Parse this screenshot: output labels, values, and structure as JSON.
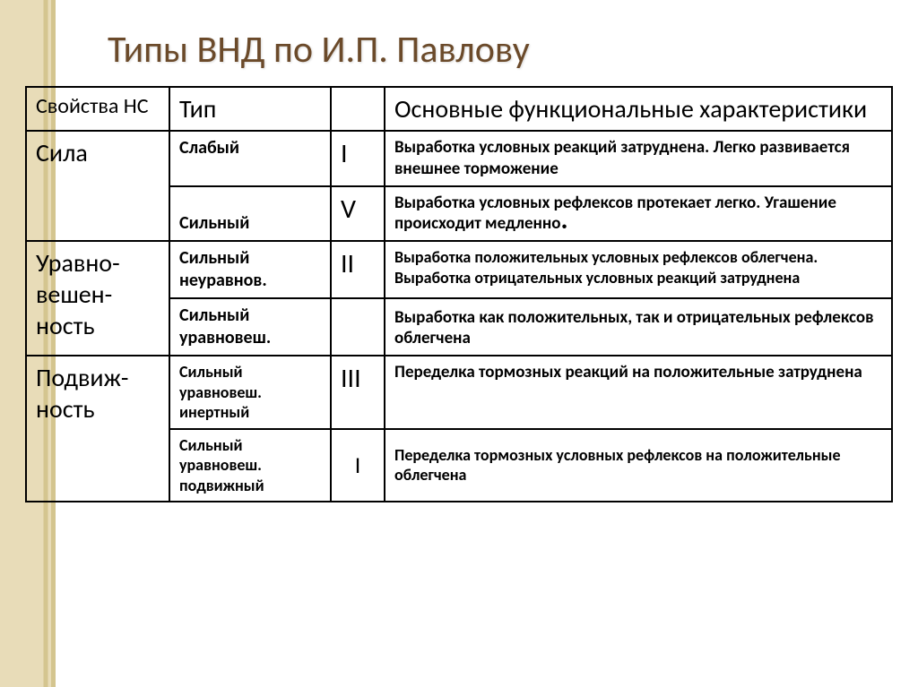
{
  "title": "Типы ВНД по И.П. Павлову",
  "table": {
    "border_color": "#000000",
    "background": "#ffffff",
    "columns": {
      "c1_w": 160,
      "c2_w": 180,
      "c3_w": 60
    },
    "header": {
      "prop": "Свойства НС",
      "type": "Тип",
      "char": "Основные функциональные характеристики"
    },
    "groups": [
      {
        "prop": "Сила",
        "rows": [
          {
            "type": "Слабый",
            "roman": "I",
            "desc": "Выработка   условных реакций   затруднена. Легко  развивается внешнее торможение"
          },
          {
            "type": "Сильный",
            "roman": "V",
            "desc_pre": "Выработка   условных рефлексов   протекает легко.  Угашение происходит медленно",
            "desc_dot": "."
          }
        ]
      },
      {
        "prop": "Уравно-вешен-ность",
        "rows": [
          {
            "type": "Сильный неуравнов.",
            "roman": "II",
            "desc": "Выработка     положительных условных рефлексов      облегчена. Выработка отрицательных условных реакций затруднена"
          },
          {
            "type": "Сильный уравновеш.",
            "roman": "",
            "desc": "Выработка как положительных, так и отрицательных   рефлексов облегчена"
          }
        ]
      },
      {
        "prop": "Подвиж-ность",
        "rows": [
          {
            "type": "Сильный уравновеш. инертный",
            "roman": "III",
            "desc": "Переделка тормозных реакций   на положительные затруднена"
          },
          {
            "type": "Сильный уравновеш. подвижный",
            "roman": "I",
            "desc": "Переделка тормозных условных рефлексов на положительные облегчена"
          }
        ]
      }
    ]
  },
  "style": {
    "title_color": "#6b4a2a",
    "sideband_light": "#e8dcb8",
    "sideband_dark": "#d4c58f"
  }
}
